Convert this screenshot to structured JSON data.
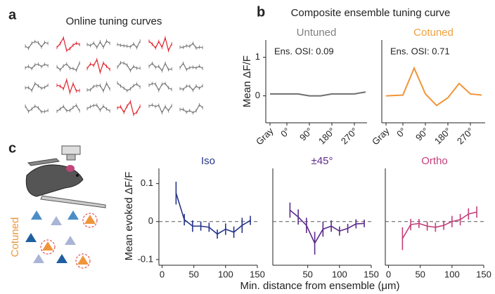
{
  "panel_labels": [
    "a",
    "b",
    "c"
  ],
  "panel_a": {
    "title": "Online tuning curves"
  },
  "panel_b": {
    "title": "Composite ensemble tuning curve",
    "ylabel": "Mean ΔF/F"
  },
  "panel_c": {
    "ylabel": "Mean evoked ΔF/F",
    "xlabel": "Min. distance from ensemble (μm)",
    "legend": "Cotuned"
  },
  "chart_data": [
    {
      "type": "line",
      "title": "Untuned",
      "title_color": "#7f7f7f",
      "annotation": "Ens. OSI: 0.09",
      "categories": [
        "Gray",
        "0°",
        null,
        "90°",
        null,
        "180°",
        null,
        "270°",
        null
      ],
      "series": [
        {
          "color": "#6e6e6e",
          "values": [
            0.05,
            0.05,
            0.05,
            0.0,
            0.0,
            0.05,
            0.05,
            0.05,
            0.1
          ]
        }
      ],
      "ylim": [
        -0.7,
        1.45
      ],
      "yticks": [
        0,
        1
      ]
    },
    {
      "type": "line",
      "title": "Cotuned",
      "title_color": "#f0a040",
      "annotation": "Ens. OSI: 0.71",
      "categories": [
        "Gray",
        "0°",
        null,
        "90°",
        null,
        "180°",
        null,
        "270°",
        null
      ],
      "series": [
        {
          "color": "#f0953a",
          "values": [
            0.0,
            0.02,
            0.72,
            0.05,
            -0.25,
            -0.05,
            0.32,
            0.05,
            0.02
          ]
        }
      ],
      "ylim": [
        -0.7,
        1.45
      ]
    },
    {
      "type": "line",
      "title": "Iso",
      "color": "#26348a",
      "x": [
        22,
        35,
        48,
        61,
        74,
        87,
        100,
        113,
        126,
        139
      ],
      "values": [
        0.075,
        0.005,
        -0.012,
        -0.012,
        -0.015,
        -0.033,
        -0.02,
        -0.028,
        -0.01,
        0.003
      ],
      "errors": [
        0.03,
        0.015,
        0.015,
        0.012,
        0.012,
        0.012,
        0.015,
        0.015,
        0.02,
        0.012
      ],
      "xlim": [
        -5,
        150
      ],
      "xticks": [
        0,
        50,
        100,
        150
      ],
      "ylim": [
        -0.115,
        0.14
      ],
      "yticks": [
        0.1,
        0,
        -0.1
      ]
    },
    {
      "type": "line",
      "title": "±45°",
      "color": "#5b2b8c",
      "x": [
        22,
        35,
        48,
        61,
        74,
        87,
        100,
        113,
        126,
        139
      ],
      "values": [
        0.03,
        0.012,
        -0.01,
        -0.057,
        -0.02,
        -0.012,
        -0.025,
        -0.018,
        -0.006,
        -0.005
      ],
      "errors": [
        0.02,
        0.02,
        0.02,
        0.03,
        0.02,
        0.015,
        0.012,
        0.012,
        0.012,
        0.01
      ],
      "xlim": [
        -5,
        150
      ],
      "xticks": [
        50,
        100,
        150
      ],
      "ylim": [
        -0.115,
        0.14
      ]
    },
    {
      "type": "line",
      "title": "Ortho",
      "color": "#c2407c",
      "x": [
        22,
        35,
        48,
        61,
        74,
        87,
        100,
        113,
        126,
        139
      ],
      "values": [
        -0.045,
        -0.008,
        -0.005,
        -0.012,
        -0.015,
        -0.01,
        0.0,
        0.005,
        0.02,
        0.025
      ],
      "errors": [
        0.03,
        0.015,
        0.012,
        0.012,
        0.012,
        0.012,
        0.015,
        0.015,
        0.015,
        0.015
      ],
      "xlim": [
        -5,
        150
      ],
      "xticks": [
        0,
        50,
        100,
        150
      ],
      "ylim": [
        -0.115,
        0.14
      ]
    }
  ]
}
